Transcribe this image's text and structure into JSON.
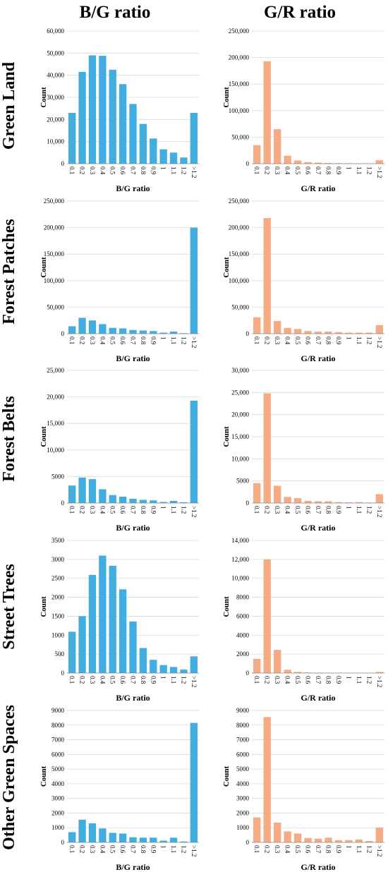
{
  "column_titles": [
    "B/G ratio",
    "G/R ratio"
  ],
  "row_titles": [
    "Green Land",
    "Forest Patches",
    "Forest Belts",
    "Street Trees",
    "Other Green Spaces"
  ],
  "colors": {
    "bg": "#41ADE0",
    "gr": "#F5AC85"
  },
  "categories": [
    "0.1",
    "0.2",
    "0.3",
    "0.4",
    "0.5",
    "0.6",
    "0.7",
    "0.8",
    "0.9",
    "1",
    "1.1",
    "1.2",
    ">1.2"
  ],
  "chart_data": [
    {
      "type": "bar",
      "row": "Green Land",
      "xlabel": "B/G ratio",
      "ylabel": "Count",
      "ylim": [
        0,
        60000
      ],
      "yticks": [
        "0",
        "10,000",
        "20,000",
        "30,000",
        "40,000",
        "50,000",
        "60,000"
      ],
      "color": "#41ADE0",
      "categories": [
        "0.1",
        "0.2",
        "0.3",
        "0.4",
        "0.5",
        "0.6",
        "0.7",
        "0.8",
        "0.9",
        "1",
        "1.1",
        "1.2",
        ">1.2"
      ],
      "values": [
        23000,
        41500,
        49000,
        48800,
        42500,
        36000,
        27000,
        18000,
        11400,
        6500,
        5000,
        2800,
        23000
      ]
    },
    {
      "type": "bar",
      "row": "Green Land",
      "xlabel": "G/R ratio",
      "ylabel": "Count",
      "ylim": [
        0,
        250000
      ],
      "yticks": [
        "0",
        "50,000",
        "100,000",
        "150,000",
        "200,000",
        "250,000"
      ],
      "color": "#F5AC85",
      "categories": [
        "0.1",
        "0.2",
        "0.3",
        "0.4",
        "0.5",
        "0.6",
        "0.7",
        "0.8",
        "0.9",
        "1",
        "1.1",
        "1.2",
        ">1.2"
      ],
      "values": [
        35000,
        193000,
        65000,
        15000,
        6000,
        3000,
        2000,
        1500,
        1000,
        800,
        600,
        500,
        6500
      ]
    },
    {
      "type": "bar",
      "row": "Forest Patches",
      "xlabel": "B/G ratio",
      "ylabel": "Count",
      "ylim": [
        0,
        250000
      ],
      "yticks": [
        "0",
        "50,000",
        "100,000",
        "150,000",
        "200,000",
        "250,000"
      ],
      "color": "#41ADE0",
      "categories": [
        "0.1",
        "0.2",
        "0.3",
        "0.4",
        "0.5",
        "0.6",
        "0.7",
        "0.8",
        "0.9",
        "1",
        "1.1",
        "1.2",
        ">1.2"
      ],
      "values": [
        14000,
        30000,
        25000,
        18000,
        11000,
        10000,
        7000,
        6000,
        5000,
        2000,
        4000,
        1000,
        200000
      ]
    },
    {
      "type": "bar",
      "row": "Forest Patches",
      "xlabel": "G/R ratio",
      "ylabel": "Count",
      "ylim": [
        0,
        250000
      ],
      "yticks": [
        "0",
        "50,000",
        "100,000",
        "150,000",
        "200,000",
        "250,000"
      ],
      "color": "#F5AC85",
      "categories": [
        "0.1",
        "0.2",
        "0.3",
        "0.4",
        "0.5",
        "0.6",
        "0.7",
        "0.8",
        "0.9",
        "1",
        "1.1",
        "1.2",
        ">1.2"
      ],
      "values": [
        31000,
        218000,
        24000,
        11000,
        9000,
        5000,
        4000,
        4000,
        3000,
        2000,
        2000,
        2000,
        16000
      ]
    },
    {
      "type": "bar",
      "row": "Forest Belts",
      "xlabel": "B/G ratio",
      "ylabel": "Count",
      "ylim": [
        0,
        25000
      ],
      "yticks": [
        "0",
        "5000",
        "10,000",
        "15,000",
        "20,000",
        "25,000"
      ],
      "color": "#41ADE0",
      "categories": [
        "0.1",
        "0.2",
        "0.3",
        "0.4",
        "0.5",
        "0.6",
        "0.7",
        "0.8",
        "0.9",
        "1",
        "1.1",
        "1.2",
        ">1.2"
      ],
      "values": [
        3300,
        4800,
        4500,
        2600,
        1500,
        1200,
        800,
        600,
        500,
        200,
        400,
        150,
        19300
      ]
    },
    {
      "type": "bar",
      "row": "Forest Belts",
      "xlabel": "G/R ratio",
      "ylabel": "Count",
      "ylim": [
        0,
        30000
      ],
      "yticks": [
        "0",
        "5000",
        "10,000",
        "15,000",
        "20,000",
        "25,000",
        "30,000"
      ],
      "color": "#F5AC85",
      "categories": [
        "0.1",
        "0.2",
        "0.3",
        "0.4",
        "0.5",
        "0.6",
        "0.7",
        "0.8",
        "0.9",
        "1",
        "1.1",
        "1.2",
        ">1.2"
      ],
      "values": [
        4500,
        24800,
        3900,
        1400,
        1100,
        500,
        400,
        400,
        200,
        150,
        200,
        100,
        2000
      ]
    },
    {
      "type": "bar",
      "row": "Street Trees",
      "xlabel": "B/G ratio",
      "ylabel": "Count",
      "ylim": [
        0,
        3500
      ],
      "yticks": [
        "0",
        "500",
        "1000",
        "1500",
        "2000",
        "2500",
        "3000",
        "3500"
      ],
      "color": "#41ADE0",
      "categories": [
        "0.1",
        "0.2",
        "0.3",
        "0.4",
        "0.5",
        "0.6",
        "0.7",
        "0.8",
        "0.9",
        "1",
        "1.1",
        "1.2",
        ">1.2"
      ],
      "values": [
        1090,
        1500,
        2590,
        3100,
        2830,
        2210,
        1360,
        660,
        350,
        210,
        160,
        90,
        440
      ]
    },
    {
      "type": "bar",
      "row": "Street Trees",
      "xlabel": "G/R ratio",
      "ylabel": "Count",
      "ylim": [
        0,
        14000
      ],
      "yticks": [
        "0",
        "2000",
        "4000",
        "6000",
        "8000",
        "10,000",
        "12,000",
        "14,000"
      ],
      "color": "#F5AC85",
      "categories": [
        "0.1",
        "0.2",
        "0.3",
        "0.4",
        "0.5",
        "0.6",
        "0.7",
        "0.8",
        "0.9",
        "1",
        "1.1",
        "1.2",
        ">1.2"
      ],
      "values": [
        1500,
        12000,
        2450,
        350,
        120,
        60,
        40,
        30,
        20,
        15,
        10,
        10,
        120
      ]
    },
    {
      "type": "bar",
      "row": "Other Green Spaces",
      "xlabel": "B/G ratio",
      "ylabel": "Count",
      "ylim": [
        0,
        9000
      ],
      "yticks": [
        "0",
        "1000",
        "2000",
        "3000",
        "4000",
        "5000",
        "6000",
        "7000",
        "8000",
        "9000"
      ],
      "color": "#41ADE0",
      "categories": [
        "0.1",
        "0.2",
        "0.3",
        "0.4",
        "0.5",
        "0.6",
        "0.7",
        "0.8",
        "0.9",
        "1",
        "1.1",
        "1.2",
        ">1.2"
      ],
      "values": [
        700,
        1550,
        1300,
        950,
        650,
        600,
        350,
        320,
        320,
        120,
        320,
        60,
        8150
      ]
    },
    {
      "type": "bar",
      "row": "Other Green Spaces",
      "xlabel": "G/R ratio",
      "ylabel": "Count",
      "ylim": [
        0,
        9000
      ],
      "yticks": [
        "0",
        "1000",
        "2000",
        "3000",
        "4000",
        "5000",
        "6000",
        "7000",
        "8000",
        "9000"
      ],
      "color": "#F5AC85",
      "categories": [
        "0.1",
        "0.2",
        "0.3",
        "0.4",
        "0.5",
        "0.6",
        "0.7",
        "0.8",
        "0.9",
        "1",
        "1.1",
        "1.2",
        ">1.2"
      ],
      "values": [
        1700,
        8550,
        1350,
        750,
        600,
        300,
        250,
        320,
        150,
        150,
        200,
        100,
        1000
      ]
    }
  ]
}
